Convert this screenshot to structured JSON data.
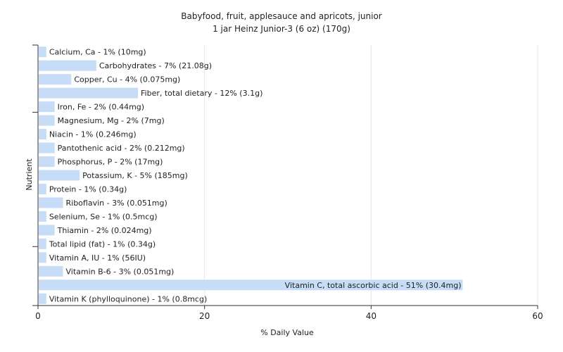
{
  "chart_data": {
    "type": "bar",
    "orientation": "horizontal",
    "title": "Babyfood, fruit, applesauce and apricots, junior",
    "subtitle": "1 jar Heinz Junior-3 (6 oz) (170g)",
    "xlabel": "% Daily Value",
    "ylabel": "Nutrient",
    "xlim": [
      0,
      60
    ],
    "xticks": [
      0,
      20,
      40,
      60
    ],
    "grid": true,
    "bar_color": "#c6dcf7",
    "grid_color": "#e6e6e6",
    "categories": [
      "Calcium, Ca",
      "Carbohydrates",
      "Copper, Cu",
      "Fiber, total dietary",
      "Iron, Fe",
      "Magnesium, Mg",
      "Niacin",
      "Pantothenic acid",
      "Phosphorus, P",
      "Potassium, K",
      "Protein",
      "Riboflavin",
      "Selenium, Se",
      "Thiamin",
      "Total lipid (fat)",
      "Vitamin A, IU",
      "Vitamin B-6",
      "Vitamin C, total ascorbic acid",
      "Vitamin K (phylloquinone)"
    ],
    "values": [
      1,
      7,
      4,
      12,
      2,
      2,
      1,
      2,
      2,
      5,
      1,
      3,
      1,
      2,
      1,
      1,
      3,
      51,
      1
    ],
    "labels": [
      "Calcium, Ca - 1% (10mg)",
      "Carbohydrates - 7% (21.08g)",
      "Copper, Cu - 4% (0.075mg)",
      "Fiber, total dietary - 12% (3.1g)",
      "Iron, Fe - 2% (0.44mg)",
      "Magnesium, Mg - 2% (7mg)",
      "Niacin - 1% (0.246mg)",
      "Pantothenic acid - 2% (0.212mg)",
      "Phosphorus, P - 2% (17mg)",
      "Potassium, K - 5% (185mg)",
      "Protein - 1% (0.34g)",
      "Riboflavin - 3% (0.051mg)",
      "Selenium, Se - 1% (0.5mcg)",
      "Thiamin - 2% (0.024mg)",
      "Total lipid (fat) - 1% (0.34g)",
      "Vitamin A, IU - 1% (56IU)",
      "Vitamin B-6 - 3% (0.051mg)",
      "Vitamin C, total ascorbic acid - 51% (30.4mg)",
      "Vitamin K (phylloquinone) - 1% (0.8mcg)"
    ]
  }
}
